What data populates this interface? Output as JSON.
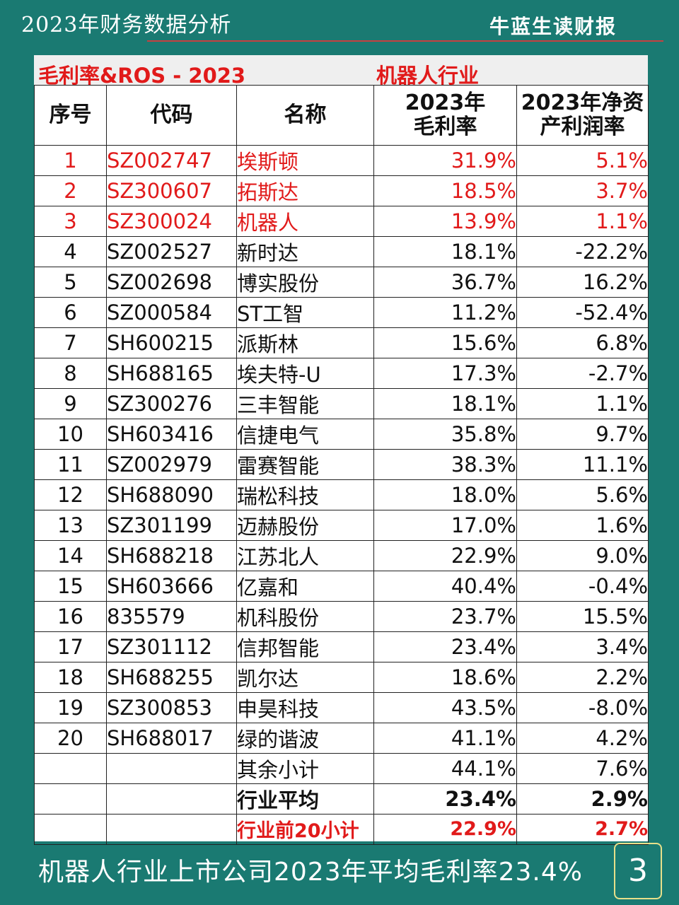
{
  "top": {
    "title": "2023年财务数据分析",
    "brand": "牛蓝生读财报"
  },
  "sheet": {
    "header_left": "毛利率&ROS - 2023",
    "header_right": "机器人行业"
  },
  "table": {
    "columns": [
      "序号",
      "代码",
      "名称",
      "2023年\n毛利率",
      "2023年净资\n产利润率"
    ],
    "rows": [
      {
        "no": "1",
        "code": "SZ002747",
        "name": "埃斯顿",
        "gm": "31.9%",
        "ros": "5.1%",
        "highlight": true
      },
      {
        "no": "2",
        "code": "SZ300607",
        "name": "拓斯达",
        "gm": "18.5%",
        "ros": "3.7%",
        "highlight": true
      },
      {
        "no": "3",
        "code": "SZ300024",
        "name": "机器人",
        "gm": "13.9%",
        "ros": "1.1%",
        "highlight": true
      },
      {
        "no": "4",
        "code": "SZ002527",
        "name": "新时达",
        "gm": "18.1%",
        "ros": "-22.2%"
      },
      {
        "no": "5",
        "code": "SZ002698",
        "name": "博实股份",
        "gm": "36.7%",
        "ros": "16.2%"
      },
      {
        "no": "6",
        "code": "SZ000584",
        "name": "ST工智",
        "gm": "11.2%",
        "ros": "-52.4%"
      },
      {
        "no": "7",
        "code": "SH600215",
        "name": "派斯林",
        "gm": "15.6%",
        "ros": "6.8%"
      },
      {
        "no": "8",
        "code": "SH688165",
        "name": "埃夫特-U",
        "gm": "17.3%",
        "ros": "-2.7%"
      },
      {
        "no": "9",
        "code": "SZ300276",
        "name": "三丰智能",
        "gm": "18.1%",
        "ros": "1.1%"
      },
      {
        "no": "10",
        "code": "SH603416",
        "name": "信捷电气",
        "gm": "35.8%",
        "ros": "9.7%"
      },
      {
        "no": "11",
        "code": "SZ002979",
        "name": "雷赛智能",
        "gm": "38.3%",
        "ros": "11.1%"
      },
      {
        "no": "12",
        "code": "SH688090",
        "name": "瑞松科技",
        "gm": "18.0%",
        "ros": "5.6%"
      },
      {
        "no": "13",
        "code": "SZ301199",
        "name": "迈赫股份",
        "gm": "17.0%",
        "ros": "1.6%"
      },
      {
        "no": "14",
        "code": "SH688218",
        "name": "江苏北人",
        "gm": "22.9%",
        "ros": "9.0%"
      },
      {
        "no": "15",
        "code": "SH603666",
        "name": "亿嘉和",
        "gm": "40.4%",
        "ros": "-0.4%"
      },
      {
        "no": "16",
        "code": "835579",
        "name": "机科股份",
        "gm": "23.7%",
        "ros": "15.5%"
      },
      {
        "no": "17",
        "code": "SZ301112",
        "name": "信邦智能",
        "gm": "23.4%",
        "ros": "3.4%"
      },
      {
        "no": "18",
        "code": "SH688255",
        "name": "凯尔达",
        "gm": "18.6%",
        "ros": "2.2%"
      },
      {
        "no": "19",
        "code": "SZ300853",
        "name": "申昊科技",
        "gm": "43.5%",
        "ros": "-8.0%"
      },
      {
        "no": "20",
        "code": "SH688017",
        "name": "绿的谐波",
        "gm": "41.1%",
        "ros": "4.2%"
      }
    ],
    "summary": [
      {
        "no": "",
        "code": "",
        "name": "其余小计",
        "gm": "44.1%",
        "ros": "7.6%",
        "style": "normal"
      },
      {
        "no": "",
        "code": "",
        "name": "行业平均",
        "gm": "23.4%",
        "ros": "2.9%",
        "style": "bold"
      },
      {
        "no": "",
        "code": "",
        "name": "行业前20小计",
        "gm": "22.9%",
        "ros": "2.7%",
        "style": "bold-red"
      }
    ]
  },
  "footer": {
    "caption": "机器人行业上市公司2023年平均毛利率23.4%",
    "page_number": "3"
  },
  "colors": {
    "background": "#1a7a72",
    "highlight_red": "#e11a1a",
    "header_band": "#efefef"
  }
}
